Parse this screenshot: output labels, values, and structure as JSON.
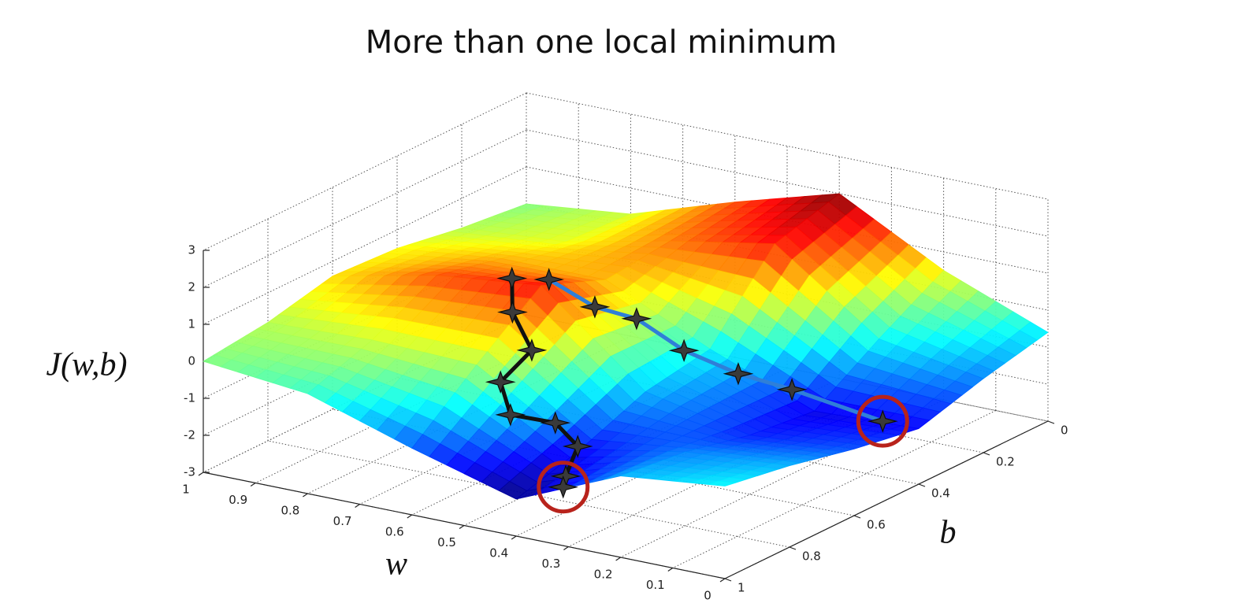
{
  "chart_data": {
    "type": "surface",
    "title": "More than one local minimum",
    "xlabel": "w",
    "ylabel": "b",
    "zlabel": "J(w,b)",
    "x": [
      0,
      0.2,
      0.4,
      0.6,
      0.8,
      1
    ],
    "y": [
      0,
      0.2,
      0.4,
      0.6,
      0.8,
      1
    ],
    "z": [
      [
        -0.6,
        -1.0,
        -1.5,
        -1.2,
        -0.8,
        -0.5
      ],
      [
        0.5,
        -0.5,
        -1.6,
        -1.4,
        -1.0,
        -0.8
      ],
      [
        2.0,
        1.5,
        -0.5,
        -0.8,
        -1.5,
        -2.0
      ],
      [
        1.2,
        1.0,
        0.8,
        1.5,
        0.2,
        -1.2
      ],
      [
        0.3,
        0.4,
        0.8,
        1.2,
        0.3,
        -0.3
      ],
      [
        0,
        0.2,
        0.5,
        0.6,
        0.2,
        0
      ]
    ],
    "xlim": [
      0,
      1
    ],
    "ylim": [
      0,
      1
    ],
    "zlim": [
      -3,
      3
    ],
    "xticks": [
      0,
      0.1,
      0.2,
      0.3,
      0.4,
      0.5,
      0.6,
      0.7,
      0.8,
      0.9,
      1
    ],
    "yticks": [
      0,
      0.2,
      0.4,
      0.6,
      0.8,
      1
    ],
    "zticks": [
      -3,
      -2,
      -1,
      0,
      1,
      2,
      3
    ],
    "grid": true,
    "colormap": "jet",
    "highlight_color": "#b8231c",
    "paths": [
      {
        "color": "#111111",
        "w": [
          0.656,
          0.624,
          0.556,
          0.585,
          0.535,
          0.449,
          0.375,
          0.367,
          0.372
        ],
        "b": [
          0.6,
          0.65,
          0.7,
          0.75,
          0.8,
          0.8,
          0.85,
          0.9,
          0.9
        ],
        "z": [
          1.53,
          0.92,
          0.3,
          -0.43,
          -0.96,
          -0.93,
          -1.14,
          -1.71,
          -2.02
        ]
      },
      {
        "color": "#2f7fd8",
        "w": [
          0.616,
          0.559,
          0.51,
          0.45,
          0.346,
          0.243,
          0.1
        ],
        "b": [
          0.55,
          0.5,
          0.45,
          0.4,
          0.4,
          0.4,
          0.35
        ],
        "z": [
          1.4,
          0.61,
          0.22,
          -0.68,
          -1.01,
          -1.14,
          -1.8
        ]
      }
    ]
  }
}
